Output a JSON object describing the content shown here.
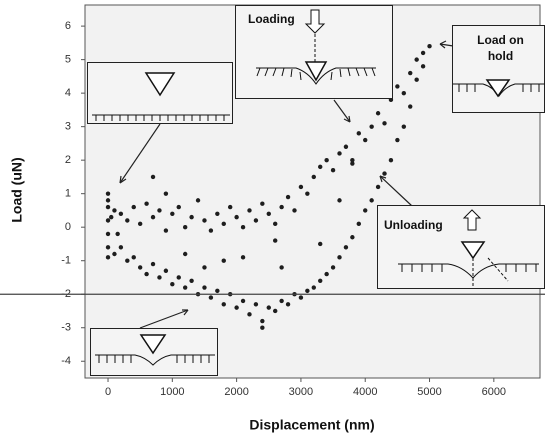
{
  "chart_data": {
    "type": "scatter",
    "x_label": "Displacement (nm)",
    "y_label": "Load (uN)",
    "x": [
      0,
      0,
      0,
      0,
      0,
      0,
      0,
      50,
      100,
      150,
      200,
      300,
      400,
      500,
      600,
      700,
      800,
      900,
      1000,
      1100,
      1200,
      1300,
      1400,
      1500,
      1600,
      1700,
      1800,
      1900,
      2000,
      2100,
      2200,
      2300,
      2400,
      2500,
      2600,
      2700,
      2800,
      2900,
      3000,
      3100,
      3200,
      3300,
      3400,
      3500,
      3600,
      3700,
      3800,
      3900,
      4000,
      4100,
      4200,
      4300,
      4400,
      4500,
      4600,
      4700,
      4800,
      4900,
      5000,
      4900,
      4800,
      4700,
      4600,
      4500,
      4400,
      4300,
      4200,
      4100,
      4000,
      3900,
      3800,
      3700,
      3600,
      3500,
      3400,
      3300,
      3200,
      3100,
      3000,
      2900,
      2800,
      2700,
      2600,
      2500,
      2400,
      2300,
      2200,
      2100,
      2000,
      1900,
      1800,
      1700,
      1600,
      1500,
      1400,
      1300,
      1200,
      1100,
      1000,
      900,
      800,
      700,
      600,
      500,
      400,
      300,
      200,
      100,
      700,
      1200,
      1800,
      2400,
      2700,
      3300,
      3600,
      2100,
      1500,
      900,
      2600,
      3800
    ],
    "values": [
      1.0,
      0.6,
      0.2,
      -0.2,
      -0.6,
      -0.9,
      0.8,
      0.3,
      0.5,
      -0.2,
      0.4,
      0.2,
      0.6,
      0.1,
      0.7,
      0.3,
      0.5,
      -0.1,
      0.4,
      0.6,
      0.0,
      0.3,
      0.8,
      0.2,
      -0.1,
      0.4,
      0.1,
      0.6,
      0.3,
      0.0,
      0.5,
      0.2,
      0.7,
      0.4,
      0.1,
      0.6,
      0.9,
      0.5,
      1.2,
      1.0,
      1.5,
      1.8,
      2.0,
      1.7,
      2.2,
      2.4,
      2.0,
      2.8,
      2.6,
      3.0,
      3.4,
      3.1,
      3.8,
      4.2,
      4.0,
      4.6,
      5.0,
      4.8,
      5.4,
      5.2,
      4.4,
      3.6,
      3.0,
      2.6,
      2.0,
      1.6,
      1.2,
      0.8,
      0.5,
      0.1,
      -0.3,
      -0.6,
      -0.9,
      -1.2,
      -1.4,
      -1.6,
      -1.8,
      -1.9,
      -2.1,
      -2.0,
      -2.3,
      -2.2,
      -2.5,
      -2.4,
      -2.8,
      -2.3,
      -2.6,
      -2.2,
      -2.4,
      -2.0,
      -2.3,
      -1.9,
      -2.1,
      -1.8,
      -2.0,
      -1.6,
      -1.8,
      -1.5,
      -1.7,
      -1.3,
      -1.5,
      -1.1,
      -1.4,
      -1.2,
      -0.9,
      -1.0,
      -0.6,
      -0.8,
      1.5,
      -0.8,
      -1.0,
      -3.0,
      -1.2,
      -0.5,
      0.8,
      -0.9,
      -1.2,
      1.0,
      -0.4,
      1.9
    ],
    "color": "#1e1e1e",
    "xlim": [
      -358,
      6718
    ],
    "ylim": [
      -4.5,
      6.63
    ],
    "xticks": [
      0,
      1000,
      2000,
      3000,
      4000,
      5000,
      6000
    ],
    "yticks": [
      -4,
      -3,
      -2,
      -1,
      0,
      1,
      2,
      3,
      4,
      5,
      6
    ],
    "hline": -2,
    "annotations": [
      "Loading",
      "Load on hold",
      "Unloading"
    ]
  }
}
